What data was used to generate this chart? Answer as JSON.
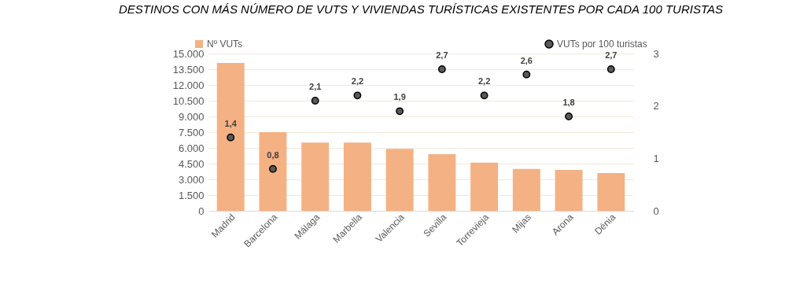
{
  "chart_data": {
    "type": "bar",
    "title": "DESTINOS CON MÁS NÚMERO DE VUTS Y VIVIENDAS TURÍSTICAS EXISTENTES POR CADA 100 TURISTAS",
    "categories": [
      "Madrid",
      "Barcelona",
      "Málaga",
      "Marbella",
      "Valencia",
      "Sevilla",
      "Torrevieja",
      "Mijas",
      "Arona",
      "Dénia"
    ],
    "series": [
      {
        "name": "Nº VUTs",
        "color": "#f4b183",
        "values": [
          14100,
          7500,
          6500,
          6500,
          5900,
          5400,
          4600,
          4000,
          3900,
          3600
        ]
      },
      {
        "name": "VUTs por 100 turistas",
        "type": "scatter",
        "axis": "y2",
        "color": "#595959",
        "values": [
          1.4,
          0.8,
          2.1,
          2.2,
          1.9,
          2.7,
          2.2,
          2.6,
          1.8,
          2.7
        ],
        "value_labels": [
          "1,4",
          "0,8",
          "2,1",
          "2,2",
          "1,9",
          "2,7",
          "2,2",
          "2,6",
          "1,8",
          "2,7"
        ]
      }
    ],
    "ylim": [
      0,
      15000
    ],
    "yticks": [
      {
        "value": 0,
        "label": "0"
      },
      {
        "value": 1500,
        "label": "1.500"
      },
      {
        "value": 3000,
        "label": "3.000"
      },
      {
        "value": 4500,
        "label": "4.500"
      },
      {
        "value": 6000,
        "label": "6.000"
      },
      {
        "value": 7500,
        "label": "7.500"
      },
      {
        "value": 9000,
        "label": "9.000"
      },
      {
        "value": 10500,
        "label": "10.500"
      },
      {
        "value": 12000,
        "label": "12.000"
      },
      {
        "value": 13500,
        "label": "13.500"
      },
      {
        "value": 15000,
        "label": "15.000"
      }
    ],
    "y2lim": [
      0,
      3
    ],
    "y2ticks": [
      0,
      1,
      2,
      3
    ],
    "grid": "y",
    "legend": "top",
    "marker": "circle"
  }
}
